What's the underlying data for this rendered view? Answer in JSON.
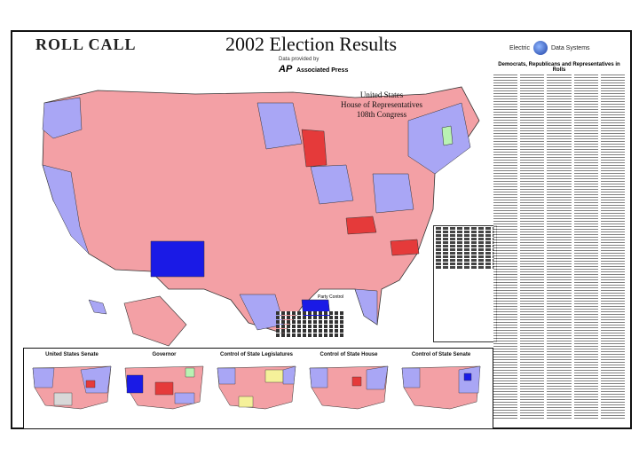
{
  "masthead": "ROLL CALL",
  "title": "2002 Election Results",
  "sponsor_left": "Electric",
  "sponsor_right": "Data Systems",
  "subtitle": "Data provided by",
  "ap_logo": "AP",
  "ap_label": "Associated Press",
  "house_label": [
    "United States",
    "House of Representatives",
    "108th Congress"
  ],
  "party_chip": "Party Control",
  "sidebar_header": "Democrats, Republicans and Representatives in Rolls",
  "insets": [
    {
      "label": "United States Senate"
    },
    {
      "label": "Governor"
    },
    {
      "label": "Control of State Legislatures"
    },
    {
      "label": "Control of State House"
    },
    {
      "label": "Control of State Senate"
    }
  ],
  "colors": {
    "republican": "#f3a0a5",
    "republican_dark": "#e53a3a",
    "democrat": "#a9a6f5",
    "democrat_dark": "#1a1ae6",
    "independent": "#b9f2b3",
    "other": "#d8d8d8",
    "border": "#333333"
  }
}
